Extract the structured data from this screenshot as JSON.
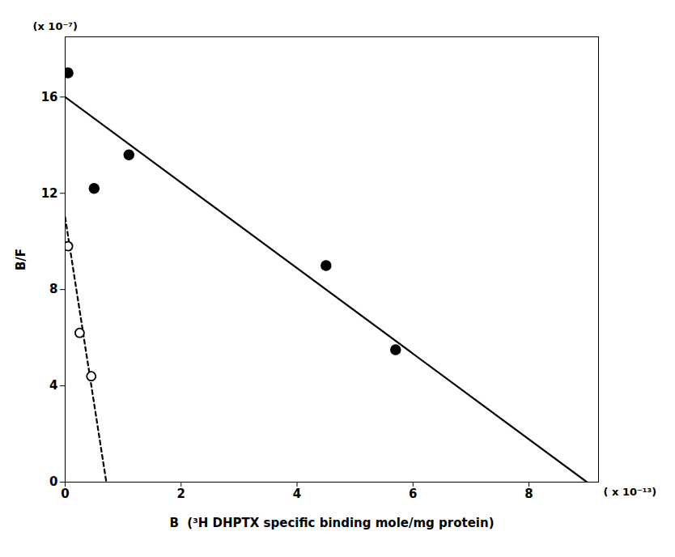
{
  "chart_data": {
    "type": "scatter",
    "xlabel": "B  (³H DHPTX specific binding mole/mg protein)",
    "ylabel": "B/F",
    "xlim": [
      0,
      9.2e-13
    ],
    "ylim": [
      0,
      1.85e-06
    ],
    "xticks": [
      0,
      {
        "value": 2e-13,
        "label": "2"
      },
      {
        "value": 4e-13,
        "label": "4"
      },
      {
        "value": 6e-13,
        "label": "6"
      },
      {
        "value": 8e-13,
        "label": "8"
      }
    ],
    "yticks": [
      0,
      {
        "value": 4e-07,
        "label": "4"
      },
      {
        "value": 8e-07,
        "label": "8"
      },
      {
        "value": 1.2e-06,
        "label": "12"
      },
      {
        "value": 1.6e-06,
        "label": "16"
      }
    ],
    "grid": false,
    "series": [
      {
        "type": "line",
        "line_style": "solid",
        "color": "#000000",
        "x": [
          0,
          9e-13
        ],
        "values": [
          1.6e-06,
          0.0
        ]
      },
      {
        "type": "line",
        "line_style": "dashed",
        "color": "#000000",
        "x": [
          0,
          7.1e-14
        ],
        "values": [
          1.1e-06,
          0.0
        ]
      },
      {
        "type": "scatter",
        "marker": "circle",
        "color": "#000000",
        "x": [
          5e-15,
          5e-14,
          1.1e-13,
          4.5e-13,
          5.7e-13
        ],
        "values": [
          1.7e-06,
          1.22e-06,
          1.36e-06,
          9e-07,
          5.5e-07
        ]
      },
      {
        "type": "scatter",
        "marker": "open_circle",
        "color": "#000000",
        "x": [
          5e-15,
          2.5e-14,
          4.5e-14
        ],
        "values": [
          9.8e-07,
          6.2e-07,
          4.4e-07
        ]
      }
    ],
    "annotations": [
      {
        "text": "(x 10⁻⁷)"
      },
      {
        "text": "( x 10⁻¹³)"
      }
    ]
  }
}
